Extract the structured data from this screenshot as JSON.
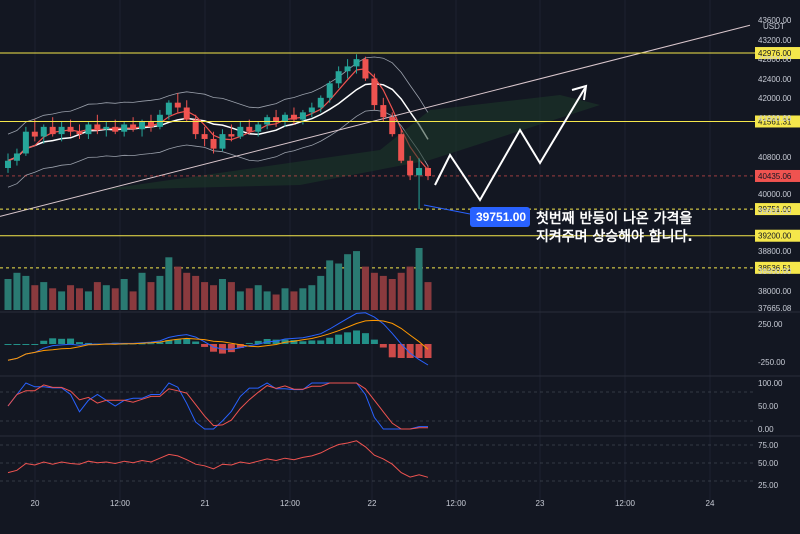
{
  "currency": "USDT",
  "colors": {
    "bg": "#131722",
    "up": "#26a69a",
    "down": "#ef5350",
    "yellow": "#f5e74b",
    "grid": "#1e2230",
    "text": "#c8ccd6",
    "blue": "#2962ff"
  },
  "chart_data": {
    "type": "candlestick",
    "price_axis_ticks": [
      "43600.00",
      "43200.00",
      "42800.00",
      "42400.00",
      "42000.00",
      "41600.00",
      "40800.00",
      "40000.00",
      "39600.00",
      "38800.00",
      "38400.00",
      "38000.00",
      "37665.08"
    ],
    "price_tags": [
      {
        "label": "42976.00",
        "value": 42976,
        "style": "yellow"
      },
      {
        "label": "41561.31",
        "value": 41561.31,
        "style": "yellow"
      },
      {
        "label": "40435.06",
        "value": 40435.06,
        "style": "red"
      },
      {
        "label": "39751.00",
        "value": 39751,
        "style": "yellow-dash"
      },
      {
        "label": "39200.00",
        "value": 39200,
        "style": "yellow"
      },
      {
        "label": "38536.51",
        "value": 38536.51,
        "style": "yellow-dash"
      }
    ],
    "ylim": [
      37665,
      43700
    ],
    "candles": [
      {
        "o": 40600,
        "h": 40900,
        "l": 40500,
        "c": 40750
      },
      {
        "o": 40750,
        "h": 41000,
        "l": 40650,
        "c": 40900
      },
      {
        "o": 40900,
        "h": 41450,
        "l": 40850,
        "c": 41350
      },
      {
        "o": 41350,
        "h": 41600,
        "l": 41150,
        "c": 41250
      },
      {
        "o": 41250,
        "h": 41500,
        "l": 41100,
        "c": 41450
      },
      {
        "o": 41450,
        "h": 41650,
        "l": 41250,
        "c": 41300
      },
      {
        "o": 41300,
        "h": 41550,
        "l": 41150,
        "c": 41450
      },
      {
        "o": 41450,
        "h": 41600,
        "l": 41250,
        "c": 41350
      },
      {
        "o": 41350,
        "h": 41500,
        "l": 41200,
        "c": 41300
      },
      {
        "o": 41300,
        "h": 41550,
        "l": 41200,
        "c": 41500
      },
      {
        "o": 41500,
        "h": 41700,
        "l": 41300,
        "c": 41400
      },
      {
        "o": 41400,
        "h": 41550,
        "l": 41250,
        "c": 41450
      },
      {
        "o": 41450,
        "h": 41600,
        "l": 41300,
        "c": 41350
      },
      {
        "o": 41350,
        "h": 41550,
        "l": 41250,
        "c": 41500
      },
      {
        "o": 41500,
        "h": 41650,
        "l": 41350,
        "c": 41400
      },
      {
        "o": 41400,
        "h": 41600,
        "l": 41250,
        "c": 41550
      },
      {
        "o": 41550,
        "h": 41700,
        "l": 41350,
        "c": 41450
      },
      {
        "o": 41450,
        "h": 41800,
        "l": 41400,
        "c": 41700
      },
      {
        "o": 41700,
        "h": 42000,
        "l": 41600,
        "c": 41950
      },
      {
        "o": 41950,
        "h": 42150,
        "l": 41750,
        "c": 41850
      },
      {
        "o": 41850,
        "h": 42000,
        "l": 41550,
        "c": 41600
      },
      {
        "o": 41600,
        "h": 41700,
        "l": 41200,
        "c": 41300
      },
      {
        "o": 41300,
        "h": 41450,
        "l": 41050,
        "c": 41200
      },
      {
        "o": 41200,
        "h": 41350,
        "l": 40900,
        "c": 41000
      },
      {
        "o": 41000,
        "h": 41400,
        "l": 40950,
        "c": 41300
      },
      {
        "o": 41300,
        "h": 41500,
        "l": 41150,
        "c": 41250
      },
      {
        "o": 41250,
        "h": 41550,
        "l": 41200,
        "c": 41450
      },
      {
        "o": 41450,
        "h": 41600,
        "l": 41300,
        "c": 41350
      },
      {
        "o": 41350,
        "h": 41550,
        "l": 41250,
        "c": 41500
      },
      {
        "o": 41500,
        "h": 41700,
        "l": 41400,
        "c": 41650
      },
      {
        "o": 41650,
        "h": 41800,
        "l": 41450,
        "c": 41550
      },
      {
        "o": 41550,
        "h": 41750,
        "l": 41450,
        "c": 41700
      },
      {
        "o": 41700,
        "h": 41850,
        "l": 41500,
        "c": 41600
      },
      {
        "o": 41600,
        "h": 41800,
        "l": 41500,
        "c": 41750
      },
      {
        "o": 41750,
        "h": 41950,
        "l": 41650,
        "c": 41850
      },
      {
        "o": 41850,
        "h": 42100,
        "l": 41750,
        "c": 42050
      },
      {
        "o": 42050,
        "h": 42400,
        "l": 41950,
        "c": 42350
      },
      {
        "o": 42350,
        "h": 42700,
        "l": 42250,
        "c": 42600
      },
      {
        "o": 42600,
        "h": 42850,
        "l": 42450,
        "c": 42700
      },
      {
        "o": 42700,
        "h": 42950,
        "l": 42550,
        "c": 42850
      },
      {
        "o": 42850,
        "h": 42900,
        "l": 42400,
        "c": 42450
      },
      {
        "o": 42450,
        "h": 42550,
        "l": 41800,
        "c": 41900
      },
      {
        "o": 41900,
        "h": 42050,
        "l": 41550,
        "c": 41650
      },
      {
        "o": 41650,
        "h": 41750,
        "l": 41250,
        "c": 41300
      },
      {
        "o": 41300,
        "h": 41400,
        "l": 40700,
        "c": 40750
      },
      {
        "o": 40750,
        "h": 40850,
        "l": 40350,
        "c": 40450
      },
      {
        "o": 40450,
        "h": 40800,
        "l": 39751,
        "c": 40600
      },
      {
        "o": 40600,
        "h": 40650,
        "l": 40350,
        "c": 40435
      }
    ],
    "volumes": [
      0.5,
      0.6,
      0.55,
      0.4,
      0.45,
      0.35,
      0.3,
      0.4,
      0.35,
      0.3,
      0.45,
      0.4,
      0.35,
      0.5,
      0.3,
      0.6,
      0.45,
      0.55,
      0.85,
      0.7,
      0.6,
      0.55,
      0.45,
      0.4,
      0.5,
      0.45,
      0.3,
      0.35,
      0.4,
      0.3,
      0.25,
      0.35,
      0.3,
      0.35,
      0.4,
      0.55,
      0.8,
      0.75,
      0.9,
      0.95,
      0.7,
      0.6,
      0.55,
      0.5,
      0.6,
      0.7,
      1.0,
      0.45
    ],
    "macd_ticks": [
      "250.00",
      "-250.00"
    ],
    "stoch_ticks": [
      "100.00",
      "50.00",
      "0.00"
    ],
    "rsi_ticks": [
      "75.00",
      "50.00",
      "25.00"
    ],
    "time_labels": [
      "20",
      "12:00",
      "21",
      "12:00",
      "22",
      "12:00",
      "23",
      "12:00",
      "24"
    ]
  },
  "annotation": {
    "line1": "첫번째 반등이 나온 가격을",
    "line2": "지켜주며 상승해야 합니다.",
    "callout": "39751.00"
  }
}
